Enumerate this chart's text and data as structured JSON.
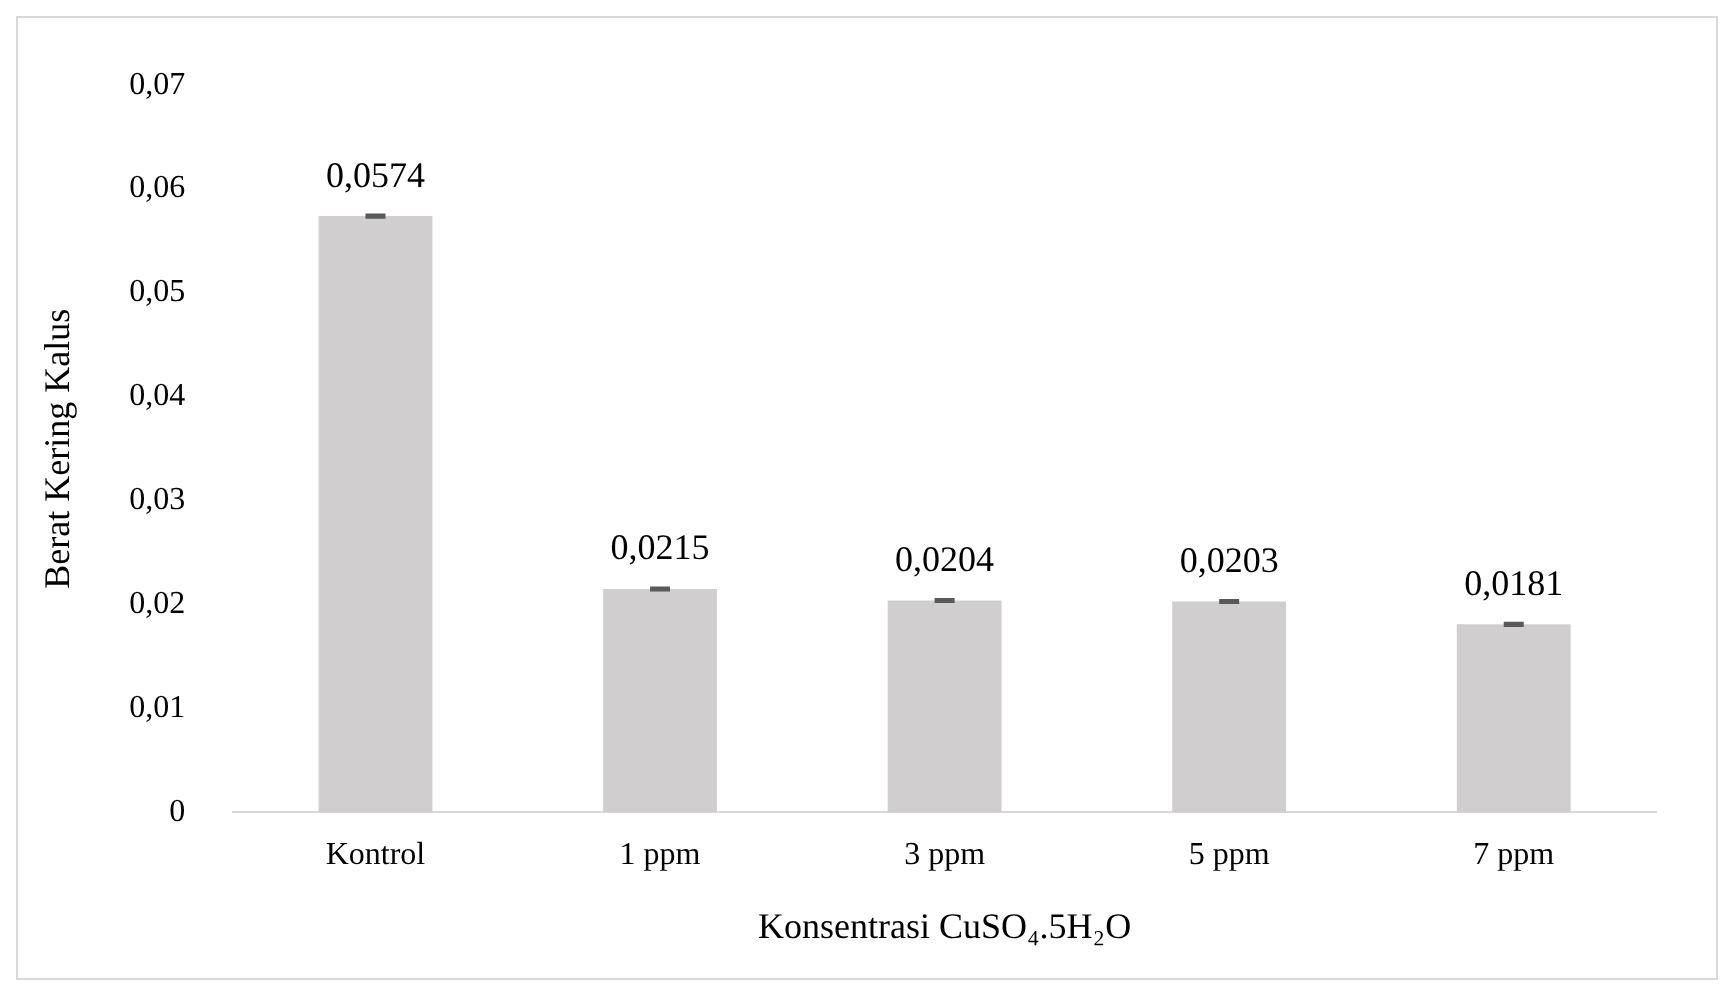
{
  "chart_data": {
    "type": "bar",
    "xlabel": "Konsentrasi CuSO₄.5H₂O",
    "ylabel": "Berat Kering Kalus",
    "categories": [
      "Kontrol",
      "1 ppm",
      "3 ppm",
      "5 ppm",
      "7 ppm"
    ],
    "values": [
      0.0574,
      0.0215,
      0.0204,
      0.0203,
      0.0181
    ],
    "value_labels": [
      "0,0574",
      "0,0215",
      "0,0204",
      "0,0203",
      "0,0181"
    ],
    "errors": [
      0.0001,
      0.0001,
      0.0001,
      0.0001,
      0.0001
    ],
    "color": "#d0cece",
    "ylim": [
      0,
      0.07
    ],
    "yticks": [
      0,
      {
        "value": 0.01,
        "label": "0,01"
      },
      {
        "value": 0.02,
        "label": "0,02"
      },
      {
        "value": 0.03,
        "label": "0,03"
      },
      {
        "value": 0.04,
        "label": "0,04"
      },
      {
        "value": 0.05,
        "label": "0,05"
      },
      {
        "value": 0.06,
        "label": "0,06"
      },
      {
        "value": 0.07,
        "label": "0,07"
      }
    ],
    "grid": false,
    "legend": false
  }
}
